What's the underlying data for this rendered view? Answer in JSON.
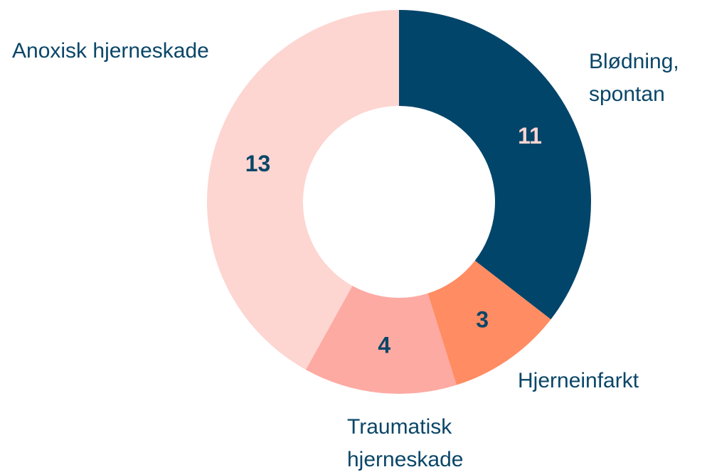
{
  "chart_data": {
    "type": "donut",
    "categories": [
      "Blødning,\nspontan",
      "Hjerneinfarkt",
      "Traumatisk\nhjerneskade",
      "Anoxisk hjerneskade"
    ],
    "values": [
      11,
      3,
      4,
      13
    ],
    "colors": [
      "#02456a",
      "#ff8c62",
      "#fdaaa3",
      "#fdd5d1"
    ]
  }
}
